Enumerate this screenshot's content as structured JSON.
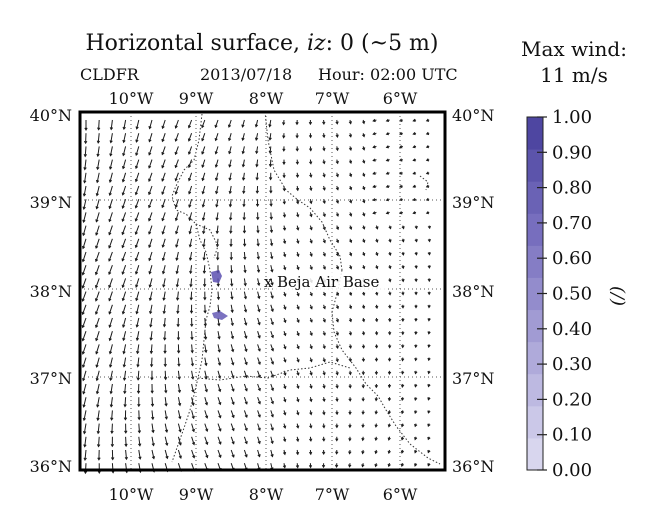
{
  "title": {
    "prefix": "Horizontal surface, ",
    "var": "iz",
    "suffix": ": 0 (~5 m)"
  },
  "meta": {
    "field": "CLDFR",
    "date": "2013/07/18",
    "hour": "Hour: 02:00 UTC"
  },
  "legend_title": {
    "line1": "Max wind:",
    "line2": "11 m/s"
  },
  "axis": {
    "lon_labels": [
      "10°W",
      "9°W",
      "8°W",
      "7°W",
      "6°W"
    ],
    "lat_labels": [
      "40°N",
      "39°N",
      "38°N",
      "37°N",
      "36°N"
    ]
  },
  "colorbar": {
    "ticks": [
      "1.00",
      "0.90",
      "0.80",
      "0.70",
      "0.60",
      "0.50",
      "0.40",
      "0.30",
      "0.20",
      "0.10",
      "0.00"
    ],
    "unit": "(/)",
    "colors": [
      "#d8d6ee",
      "#cbc8e8",
      "#bdb9e1",
      "#afaada",
      "#a19bd3",
      "#938ccc",
      "#857dc5",
      "#776ebe",
      "#6a62b5",
      "#5c54ab",
      "#4e46a1"
    ]
  },
  "marker": {
    "label": "Beja Air Base",
    "symbol": "x"
  },
  "colors": {
    "cloud": "#5a4fb0",
    "arrow": "#1a1a1a"
  }
}
